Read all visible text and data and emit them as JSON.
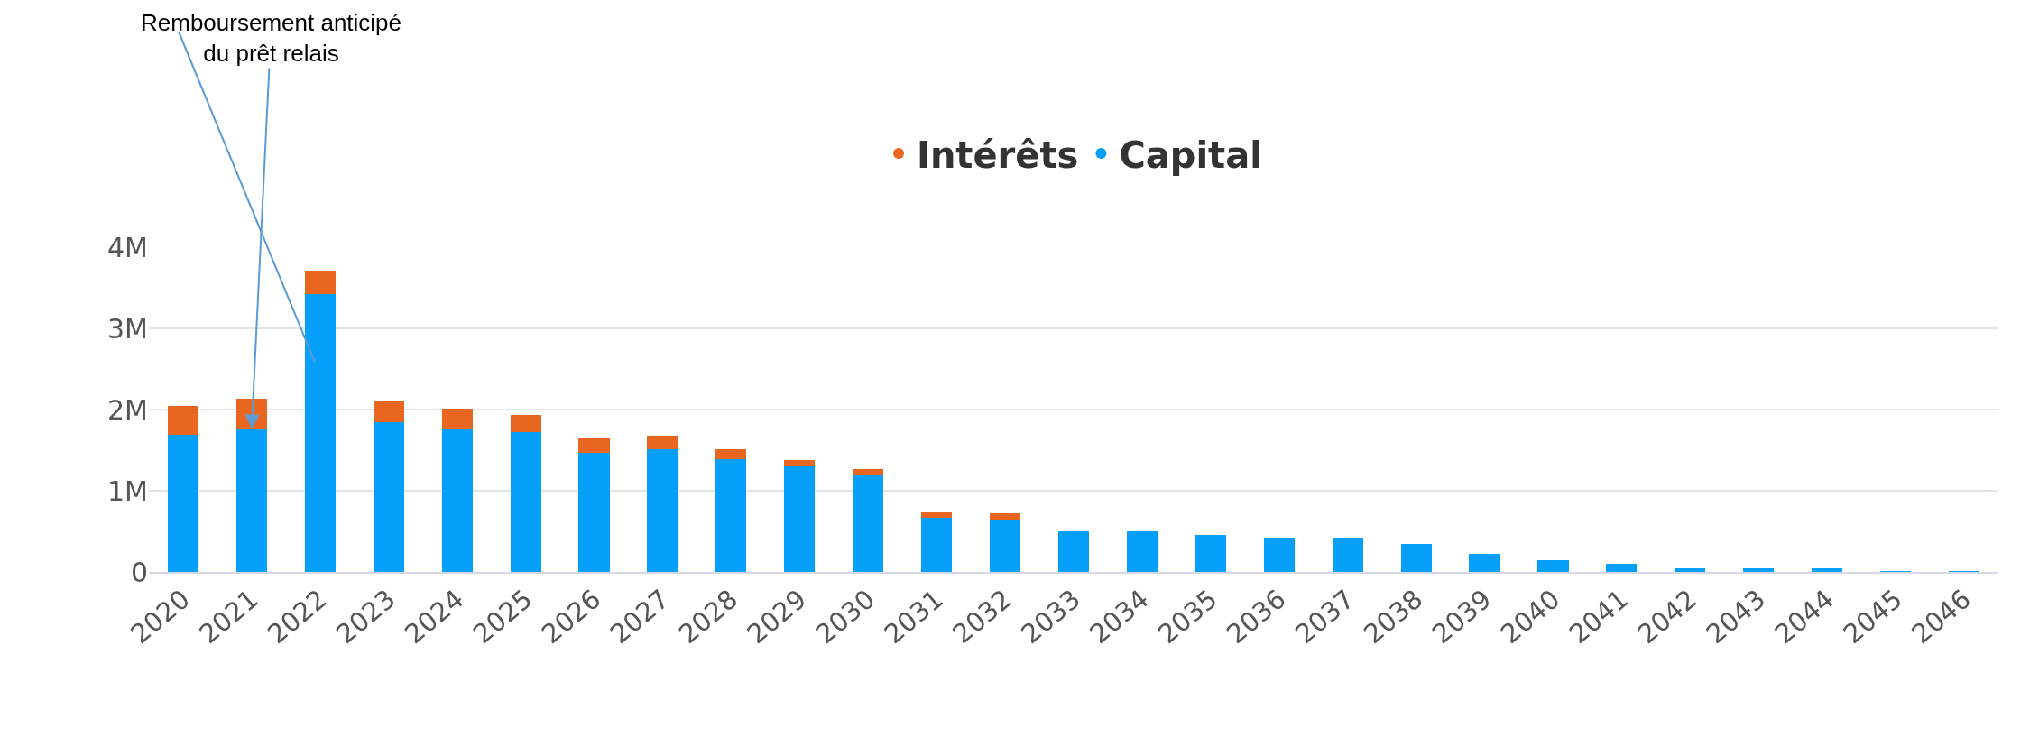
{
  "chart_data": {
    "type": "bar",
    "stacked": true,
    "categories": [
      "2020",
      "2021",
      "2022",
      "2023",
      "2024",
      "2025",
      "2026",
      "2027",
      "2028",
      "2029",
      "2030",
      "2031",
      "2032",
      "2033",
      "2034",
      "2035",
      "2036",
      "2037",
      "2038",
      "2039",
      "2040",
      "2041",
      "2042",
      "2043",
      "2044",
      "2045",
      "2046"
    ],
    "series": [
      {
        "name": "Capital",
        "color": "#069ff9",
        "values": [
          1690000,
          1760000,
          3420000,
          1840000,
          1770000,
          1720000,
          1470000,
          1510000,
          1390000,
          1310000,
          1190000,
          670000,
          640000,
          500000,
          500000,
          460000,
          420000,
          420000,
          340000,
          220000,
          140000,
          100000,
          50000,
          50000,
          50000,
          10000,
          10000
        ]
      },
      {
        "name": "Intérêts",
        "color": "#e8661f",
        "values": [
          360000,
          370000,
          290000,
          260000,
          240000,
          210000,
          170000,
          170000,
          120000,
          70000,
          80000,
          80000,
          80000,
          0,
          0,
          0,
          0,
          0,
          0,
          0,
          0,
          0,
          0,
          0,
          0,
          0,
          0
        ]
      }
    ],
    "ylim": [
      0,
      4000000
    ],
    "yticks": [
      {
        "value": 0,
        "label": "0"
      },
      {
        "value": 1000000,
        "label": "1M"
      },
      {
        "value": 2000000,
        "label": "2M"
      },
      {
        "value": 3000000,
        "label": "3M"
      },
      {
        "value": 4000000,
        "label": "4M"
      }
    ],
    "grid": "y",
    "legend": "top",
    "marker": "circle",
    "annotations": [
      {
        "text": "Remboursement anticipé\ndu prêt relais",
        "x": "2021",
        "y": 1760000
      }
    ]
  }
}
